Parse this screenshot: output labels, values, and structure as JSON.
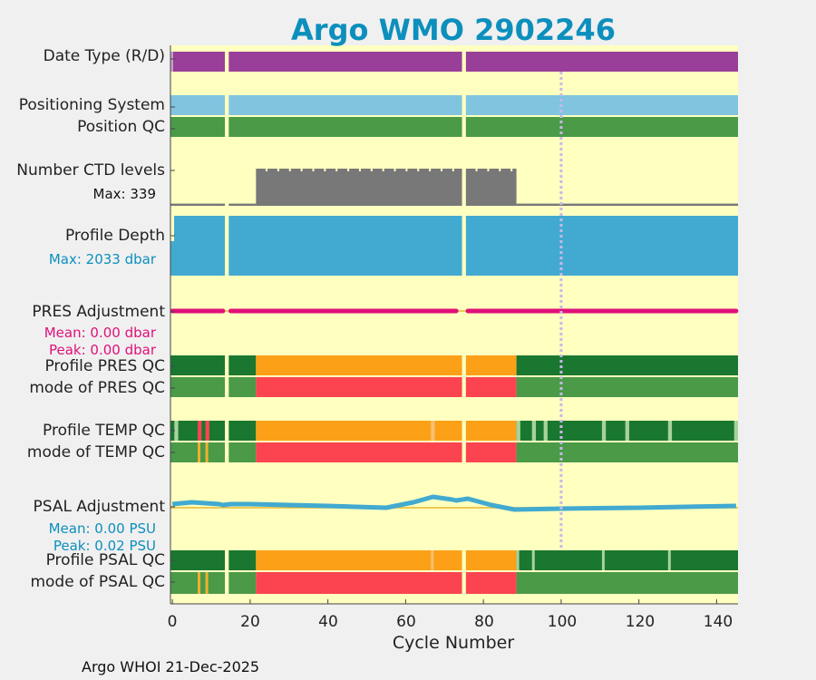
{
  "chart_data": {
    "type": "status-timeline",
    "title": "Argo WMO 2902246",
    "xlabel": "Cycle Number",
    "xlim": [
      -0.5,
      145.5
    ],
    "xticks": [
      0,
      20,
      40,
      60,
      80,
      100,
      120,
      140
    ],
    "missing_cycles": [
      14,
      75
    ],
    "reference_cycle": 100,
    "rows": [
      {
        "key": "date_type",
        "label": "Date Type (R/D)",
        "color": "#993f99"
      },
      {
        "key": "positioning",
        "label": "Positioning System",
        "color": "#80c4e0"
      },
      {
        "key": "position_qc",
        "label": "Position QC",
        "color": "#4a9a48"
      },
      {
        "key": "ctd_levels",
        "label": "Number CTD levels",
        "sublabel": "Max: 339",
        "max": 339,
        "segments": [
          {
            "from": 0,
            "to": 21,
            "value": 20
          },
          {
            "from": 22,
            "to": 88,
            "value": 339
          },
          {
            "from": 89,
            "to": 145,
            "value": 20
          }
        ]
      },
      {
        "key": "profile_depth",
        "label": "Profile Depth",
        "sublabel": "Max: 2033 dbar",
        "max_dbar": 2033
      },
      {
        "key": "pres_adj",
        "label": "PRES Adjustment",
        "mean": "Mean: 0.00 dbar",
        "peak": "Peak: 0.00 dbar",
        "value_dbar": 0.0
      },
      {
        "key": "profile_pres_qc",
        "label": "Profile PRES QC",
        "segments": [
          {
            "from": 0,
            "to": 21,
            "code": "A"
          },
          {
            "from": 22,
            "to": 88,
            "code": "B"
          },
          {
            "from": 89,
            "to": 145,
            "code": "A"
          }
        ]
      },
      {
        "key": "mode_pres_qc",
        "label": "mode of PRES QC",
        "segments": [
          {
            "from": 0,
            "to": 21,
            "code": "1"
          },
          {
            "from": 22,
            "to": 88,
            "code": "4"
          },
          {
            "from": 89,
            "to": 145,
            "code": "1"
          }
        ]
      },
      {
        "key": "profile_temp_qc",
        "label": "Profile TEMP QC"
      },
      {
        "key": "mode_temp_qc",
        "label": "mode of TEMP QC"
      },
      {
        "key": "psal_adj",
        "label": "PSAL Adjustment",
        "mean": "Mean: 0.00 PSU",
        "peak": "Peak: 0.02 PSU",
        "peak_value": 0.02
      },
      {
        "key": "profile_psal_qc",
        "label": "Profile PSAL QC"
      },
      {
        "key": "mode_psal_qc",
        "label": "mode of PSAL QC"
      }
    ],
    "footer": "Argo WHOI 21-Dec-2025"
  }
}
